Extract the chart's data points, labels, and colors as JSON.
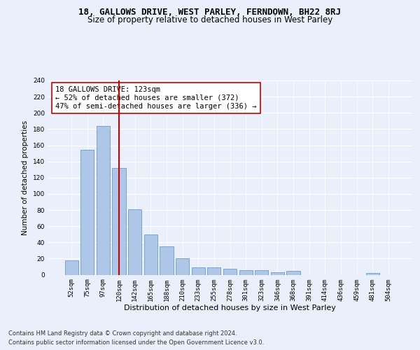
{
  "title1": "18, GALLOWS DRIVE, WEST PARLEY, FERNDOWN, BH22 8RJ",
  "title2": "Size of property relative to detached houses in West Parley",
  "xlabel": "Distribution of detached houses by size in West Parley",
  "ylabel": "Number of detached properties",
  "bar_labels": [
    "52sqm",
    "75sqm",
    "97sqm",
    "120sqm",
    "142sqm",
    "165sqm",
    "188sqm",
    "210sqm",
    "233sqm",
    "255sqm",
    "278sqm",
    "301sqm",
    "323sqm",
    "346sqm",
    "368sqm",
    "391sqm",
    "414sqm",
    "436sqm",
    "459sqm",
    "481sqm",
    "504sqm"
  ],
  "bar_values": [
    18,
    154,
    184,
    132,
    81,
    50,
    35,
    20,
    9,
    9,
    7,
    6,
    6,
    3,
    5,
    0,
    0,
    0,
    0,
    2,
    0
  ],
  "bar_color": "#aec6e8",
  "bar_edgecolor": "#5b8db8",
  "vline_x": 3,
  "vline_color": "#cc0000",
  "annotation_text": "18 GALLOWS DRIVE: 123sqm\n← 52% of detached houses are smaller (372)\n47% of semi-detached houses are larger (336) →",
  "annotation_bbox_edgecolor": "#cc0000",
  "annotation_bbox_facecolor": "#ffffff",
  "ylim": [
    0,
    240
  ],
  "yticks": [
    0,
    20,
    40,
    60,
    80,
    100,
    120,
    140,
    160,
    180,
    200,
    220,
    240
  ],
  "footnote1": "Contains HM Land Registry data © Crown copyright and database right 2024.",
  "footnote2": "Contains public sector information licensed under the Open Government Licence v3.0.",
  "background_color": "#eaf0fb",
  "plot_bg_color": "#eaf0fb",
  "grid_color": "#ffffff",
  "title1_fontsize": 9,
  "title2_fontsize": 8.5,
  "xlabel_fontsize": 8,
  "ylabel_fontsize": 7.5,
  "tick_fontsize": 6.5,
  "annotation_fontsize": 7.5,
  "footnote_fontsize": 6.0
}
